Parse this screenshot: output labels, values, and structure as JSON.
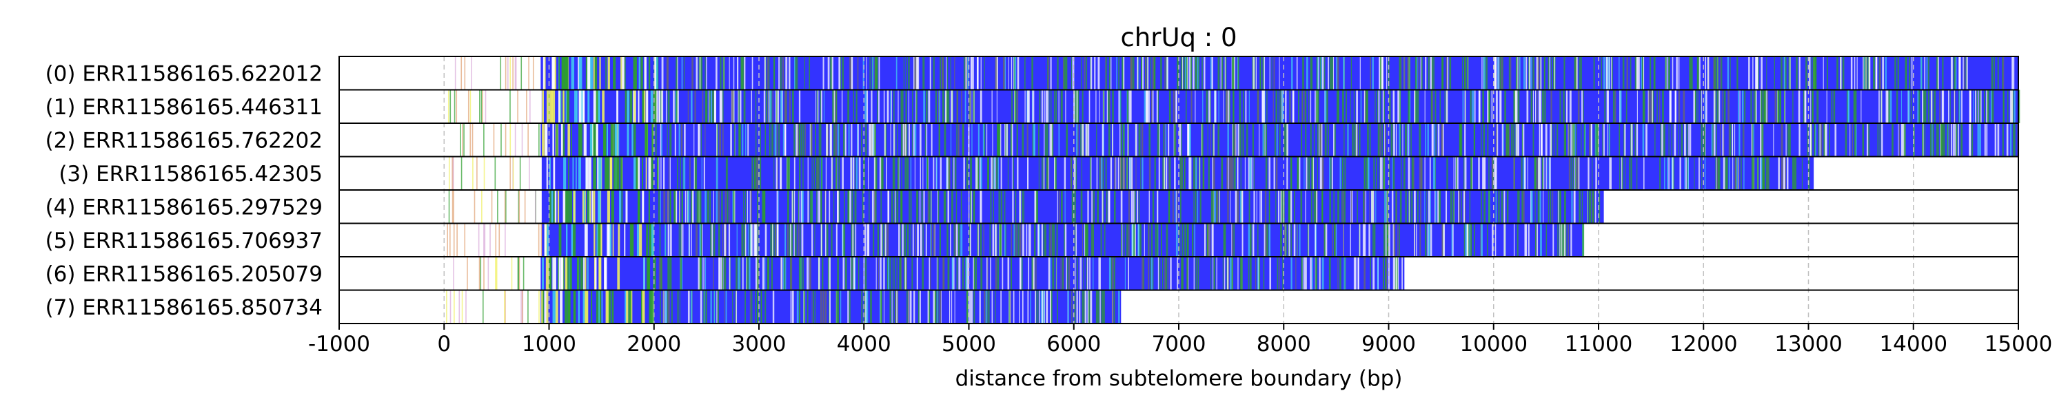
{
  "chart_data": {
    "type": "heatmap",
    "title": "chrUq : 0",
    "xlabel": "distance from subtelomere boundary (bp)",
    "ylabel": "",
    "xlim": [
      -1000,
      15000
    ],
    "xticks": [
      -1000,
      0,
      1000,
      2000,
      3000,
      4000,
      5000,
      6000,
      7000,
      8000,
      9000,
      10000,
      11000,
      12000,
      13000,
      14000,
      15000
    ],
    "xtick_labels": [
      "-1000",
      "0",
      "1000",
      "2000",
      "3000",
      "4000",
      "5000",
      "6000",
      "7000",
      "8000",
      "9000",
      "10000",
      "11000",
      "12000",
      "13000",
      "14000",
      "15000"
    ],
    "grid": "vertical dashed at ticks",
    "colors": {
      "main": "#3333ff",
      "green": "#2e9e2e",
      "yellow": "#f0f060",
      "cyan": "#40c8f0",
      "white": "#ffffff",
      "grid": "#c0c0c0"
    },
    "reads": [
      {
        "label": "(0) ERR11586165.622012",
        "start": 0,
        "end": 15000,
        "dense_start": 920
      },
      {
        "label": "(1) ERR11586165.446311",
        "start": 0,
        "end": 15000,
        "dense_start": 930
      },
      {
        "label": "(2) ERR11586165.762202",
        "start": 0,
        "end": 15000,
        "dense_start": 920
      },
      {
        "label": "(3) ERR11586165.42305",
        "start": 0,
        "end": 13050,
        "dense_start": 930
      },
      {
        "label": "(4) ERR11586165.297529",
        "start": 0,
        "end": 11050,
        "dense_start": 930
      },
      {
        "label": "(5) ERR11586165.706937",
        "start": 0,
        "end": 10850,
        "dense_start": 930
      },
      {
        "label": "(6) ERR11586165.205079",
        "start": 0,
        "end": 9150,
        "dense_start": 920
      },
      {
        "label": "(7) ERR11586165.850734",
        "start": 0,
        "end": 6450,
        "dense_start": 920
      }
    ]
  }
}
